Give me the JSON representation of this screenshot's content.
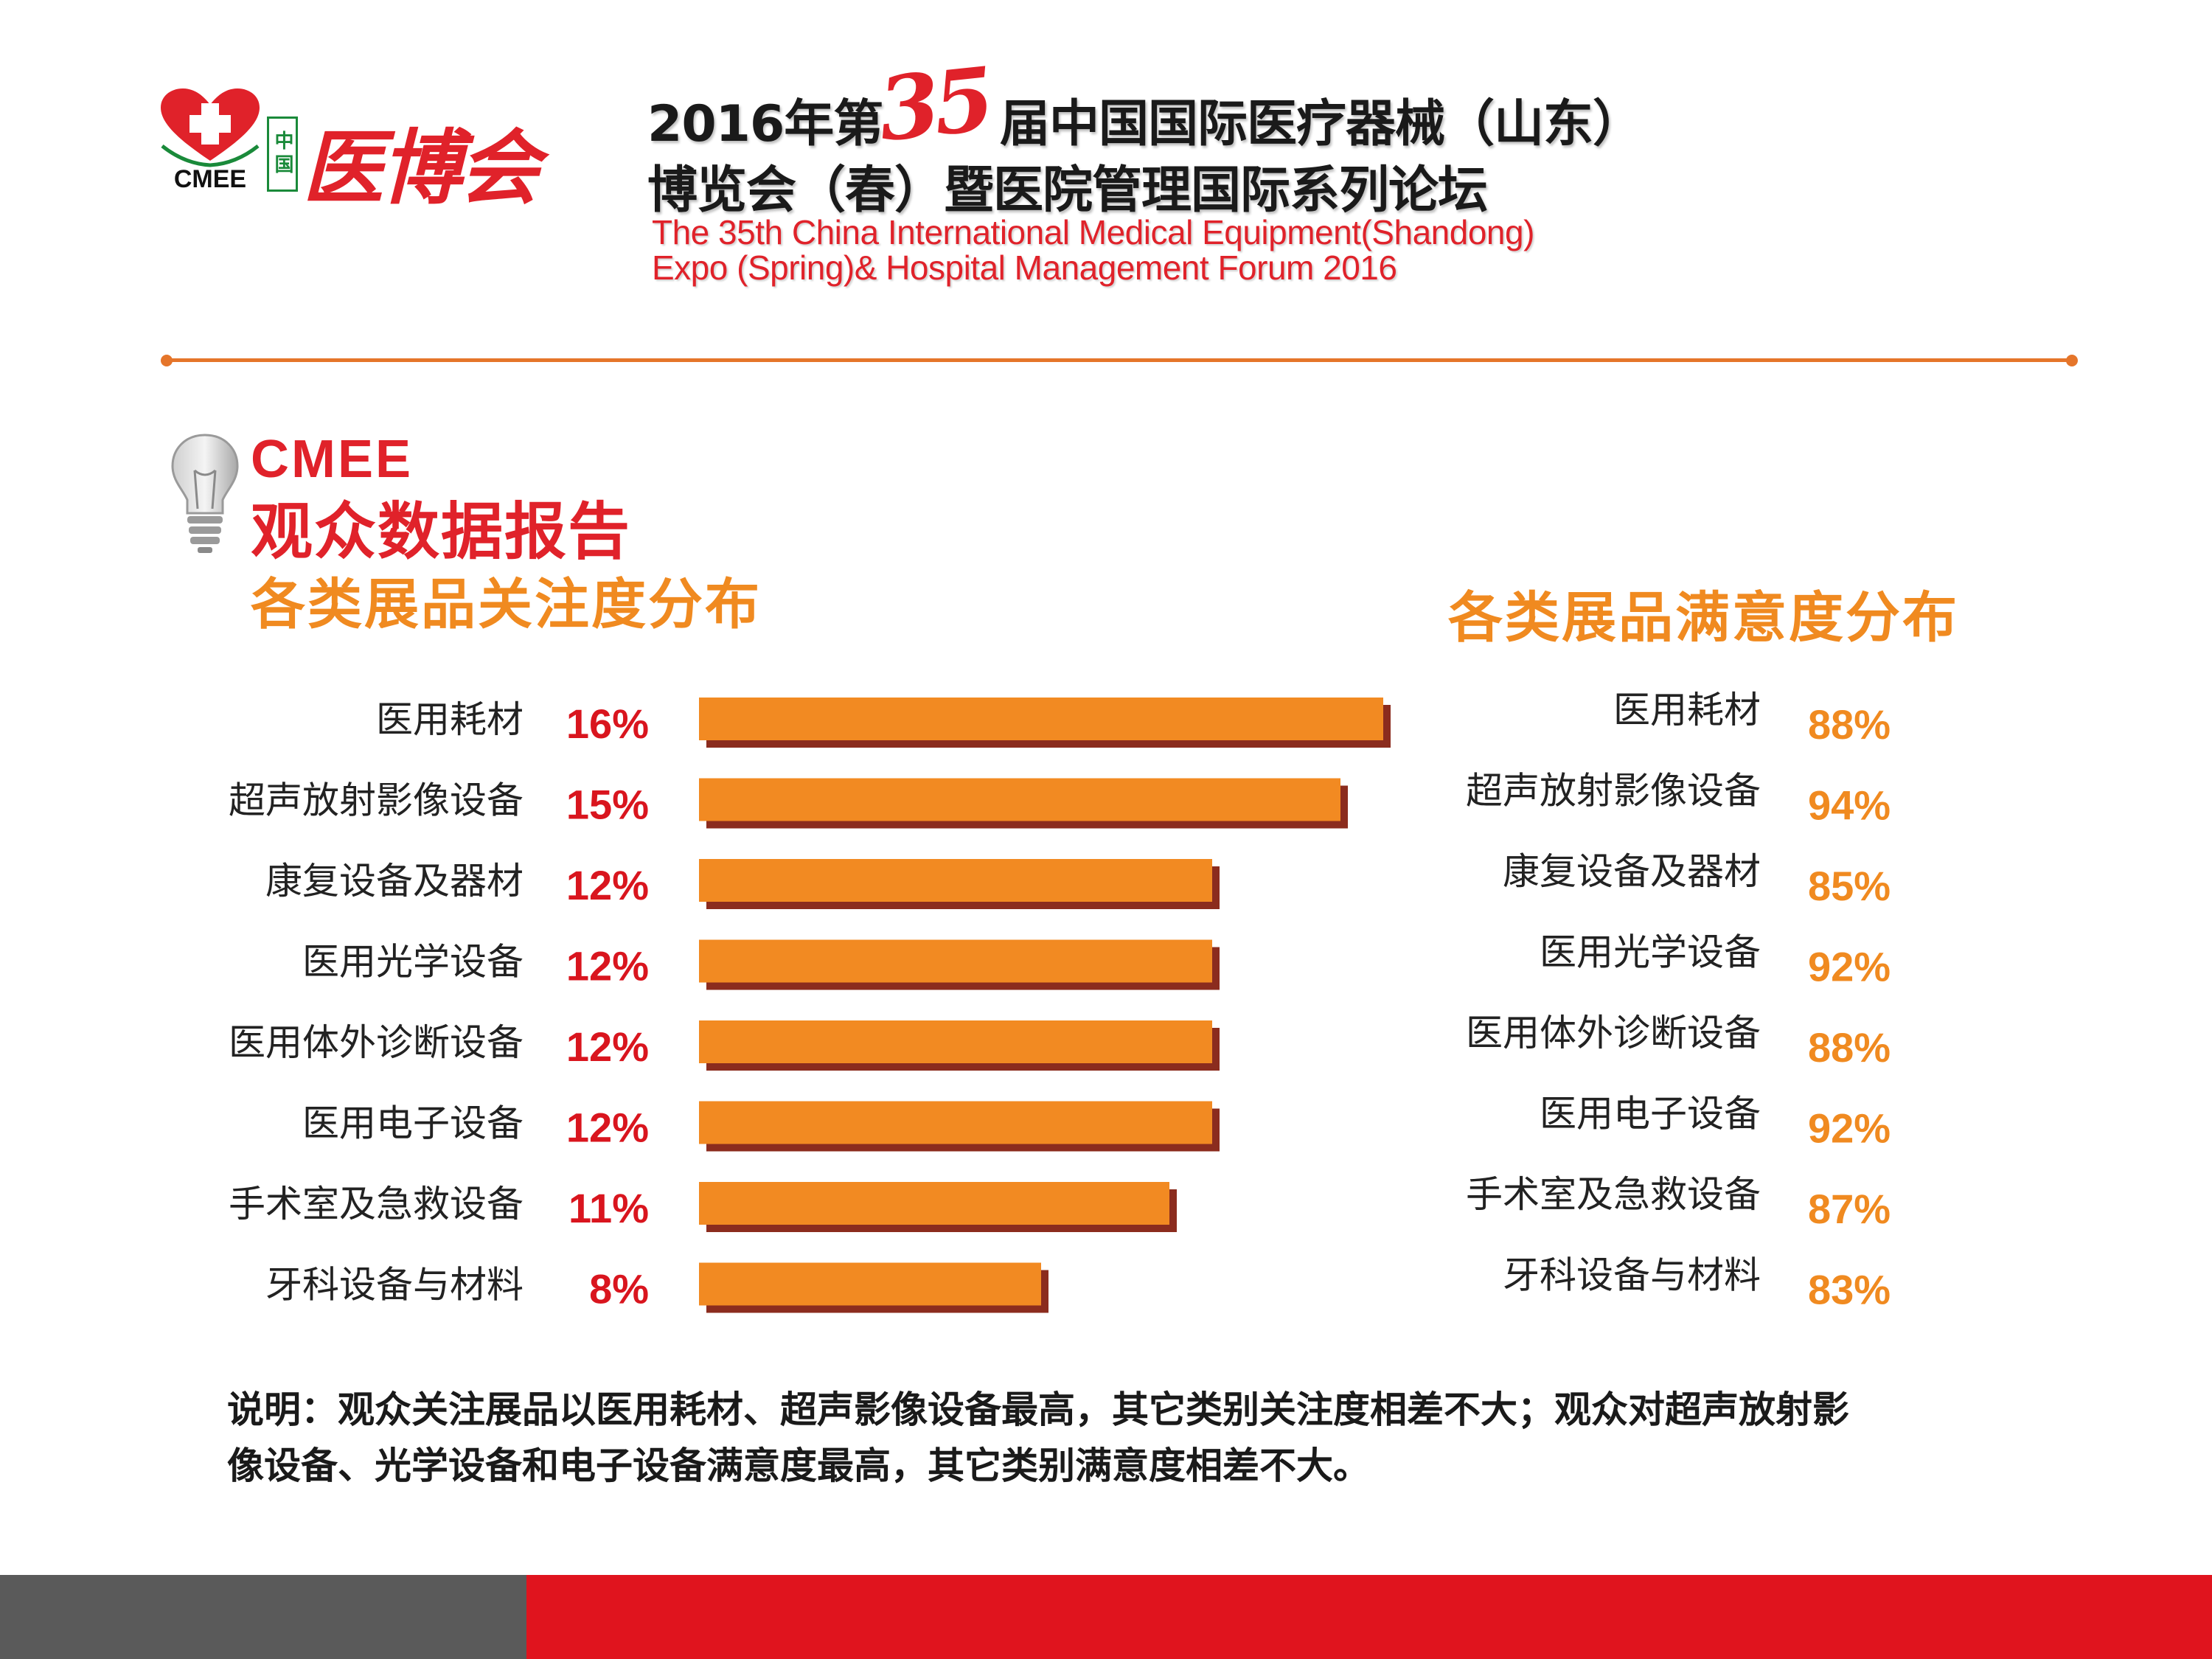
{
  "logo": {
    "cmee": "CMEE",
    "china": "中国",
    "script": "医博会"
  },
  "header": {
    "cn_line1_a": "2016年第",
    "cn_line1_num": "35",
    "cn_line1_b": "届中国国际医疗器械（山东）",
    "cn_line2": "博览会（春）暨医院管理国际系列论坛",
    "en_line1": "The 35th China International Medical Equipment(Shandong)",
    "en_line2": "Expo (Spring)& Hospital Management Forum 2016"
  },
  "report": {
    "brand": "CMEE",
    "title": "观众数据报告",
    "attention_title": "各类展品关注度分布",
    "satisfaction_title": "各类展品满意度分布"
  },
  "colors": {
    "bar": "#f28a22",
    "bar_shadow": "#8b2c1e",
    "attention_pct": "#d9151e",
    "satisfaction_pct": "#f08a20",
    "accent_red": "#e0222a",
    "divider": "#e5752a"
  },
  "chart_data": [
    {
      "type": "bar",
      "orientation": "horizontal",
      "title": "各类展品关注度分布",
      "categories": [
        "医用耗材",
        "超声放射影像设备",
        "康复设备及器材",
        "医用光学设备",
        "医用体外诊断设备",
        "医用电子设备",
        "手术室及急救设备",
        "牙科设备与材料"
      ],
      "values": [
        16,
        15,
        12,
        12,
        12,
        12,
        11,
        8
      ],
      "value_labels": [
        "16%",
        "15%",
        "12%",
        "12%",
        "12%",
        "12%",
        "11%",
        "8%"
      ],
      "unit": "%",
      "xlim": [
        0,
        16
      ]
    },
    {
      "type": "table",
      "title": "各类展品满意度分布",
      "categories": [
        "医用耗材",
        "超声放射影像设备",
        "康复设备及器材",
        "医用光学设备",
        "医用体外诊断设备",
        "医用电子设备",
        "手术室及急救设备",
        "牙科设备与材料"
      ],
      "values": [
        88,
        94,
        85,
        92,
        88,
        92,
        87,
        83
      ],
      "value_labels": [
        "88%",
        "94%",
        "85%",
        "92%",
        "88%",
        "92%",
        "87%",
        "83%"
      ],
      "unit": "%"
    }
  ],
  "note": {
    "line1": "说明：观众关注展品以医用耗材、超声影像设备最高，其它类别关注度相差不大；观众对超声放射影",
    "line2": "像设备、光学设备和电子设备满意度最高，其它类别满意度相差不大。"
  }
}
